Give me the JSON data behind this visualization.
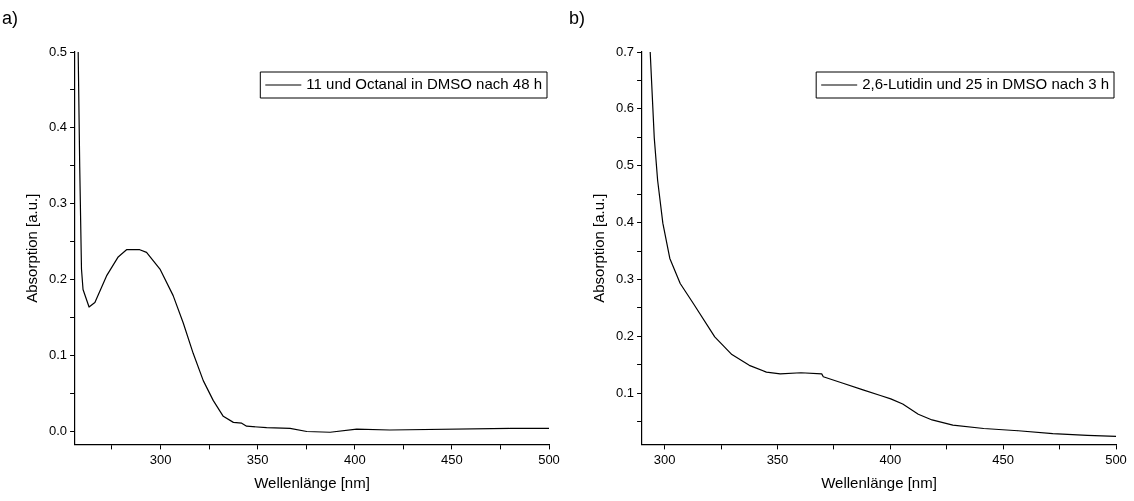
{
  "chart_data": [
    {
      "type": "line",
      "annotations": [
        "a)"
      ],
      "xlabel": "Wellenlänge [nm]",
      "ylabel": "Absorption [a.u.]",
      "xlim": [
        256,
        500
      ],
      "ylim": [
        -0.017,
        0.5
      ],
      "xticks": [
        {
          "value": 275,
          "label": null
        },
        300,
        {
          "value": 325,
          "label": null
        },
        350,
        {
          "value": 375,
          "label": null
        },
        400,
        {
          "value": 425,
          "label": null
        },
        450,
        {
          "value": 475,
          "label": null
        },
        500
      ],
      "yticks": [
        "0.0",
        {
          "value": 0.05,
          "label": null
        },
        0.1,
        {
          "value": 0.15,
          "label": null
        },
        0.2,
        {
          "value": 0.25,
          "label": null
        },
        0.3,
        {
          "value": 0.35,
          "label": null
        },
        0.4,
        {
          "value": 0.45,
          "label": null
        },
        0.5
      ],
      "grid": false,
      "legend": "top right",
      "marker": "none",
      "line_style": "solid",
      "series": [
        {
          "name": "11 und Octanal in DMSO nach 48 h",
          "color": "#000000",
          "x": [
            257.6,
            258.4,
            259.3,
            260.1,
            263.2,
            266.2,
            272.2,
            278.2,
            282.5,
            289.3,
            292.8,
            299.7,
            306.5,
            311.7,
            316.8,
            322,
            327.1,
            332.3,
            337.5,
            341.8,
            344.3,
            354.6,
            366.7,
            375.3,
            387.3,
            401,
            418,
            480,
            500
          ],
          "values": [
            0.5,
            0.348,
            0.214,
            0.187,
            0.164,
            0.17,
            0.205,
            0.23,
            0.2395,
            0.2395,
            0.236,
            0.214,
            0.179,
            0.143,
            0.103,
            0.067,
            0.041,
            0.02,
            0.012,
            0.011,
            0.007,
            0.005,
            0.004,
            0.0,
            -0.001,
            0.003,
            0.002,
            0.004,
            0.004
          ]
        }
      ]
    },
    {
      "type": "line",
      "annotations": [
        "b)"
      ],
      "xlabel": "Wellenlänge [nm]",
      "ylabel": "Absorption [a.u.]",
      "xlim": [
        290,
        500
      ],
      "ylim": [
        0.01,
        0.7
      ],
      "xticks": [
        300,
        {
          "value": 325,
          "label": null
        },
        350,
        {
          "value": 375,
          "label": null
        },
        400,
        {
          "value": 425,
          "label": null
        },
        450,
        {
          "value": 475,
          "label": null
        },
        500
      ],
      "yticks": [
        {
          "value": 0.05,
          "label": null
        },
        0.1,
        {
          "value": 0.15,
          "label": null
        },
        0.2,
        {
          "value": 0.25,
          "label": null
        },
        0.3,
        {
          "value": 0.35,
          "label": null
        },
        0.4,
        {
          "value": 0.45,
          "label": null
        },
        0.5,
        {
          "value": 0.55,
          "label": null
        },
        0.6,
        {
          "value": 0.65,
          "label": null
        },
        0.7
      ],
      "grid": false,
      "legend": "top right",
      "marker": "none",
      "line_style": "solid",
      "series": [
        {
          "name": "2,6-Lutidin und 25 in DMSO nach 3 h",
          "color": "#000000",
          "x": [
            293.6,
            295.4,
            296.9,
            299.2,
            302.3,
            306.9,
            313,
            322.2,
            329.8,
            337.5,
            345.1,
            351.2,
            360.4,
            369.6,
            370.3,
            378.7,
            387.9,
            395.6,
            400.2,
            405.5,
            412.4,
            418.5,
            427.7,
            441.4,
            456.7,
            472,
            487.3,
            500
          ],
          "values": [
            0.7,
            0.549,
            0.474,
            0.399,
            0.337,
            0.293,
            0.256,
            0.199,
            0.168,
            0.149,
            0.137,
            0.134,
            0.136,
            0.134,
            0.129,
            0.118,
            0.106,
            0.096,
            0.09,
            0.081,
            0.063,
            0.053,
            0.044,
            0.038,
            0.034,
            0.029,
            0.026,
            0.024
          ]
        }
      ]
    }
  ]
}
